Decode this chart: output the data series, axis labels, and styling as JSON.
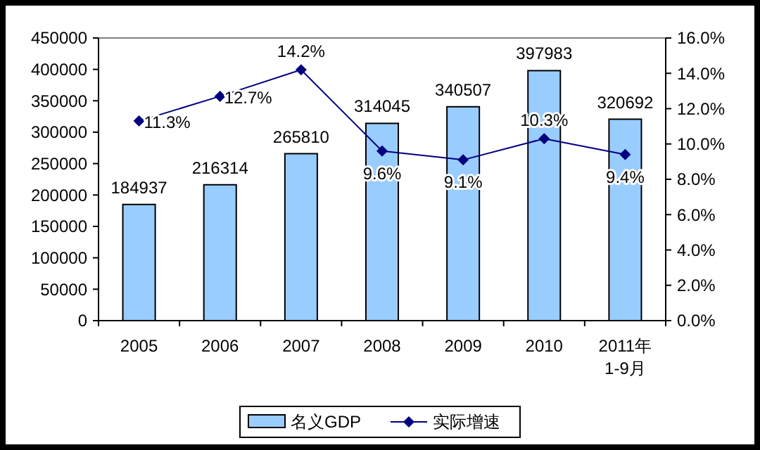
{
  "chart_data": {
    "type": "bar",
    "categories": [
      "2005",
      "2006",
      "2007",
      "2008",
      "2009",
      "2010",
      "2011年\n1-9月"
    ],
    "series": [
      {
        "name": "名义GDP",
        "color": "#99ccff",
        "values": [
          184937,
          216314,
          265810,
          314045,
          340507,
          397983,
          320692
        ],
        "value_labels": [
          "184937",
          "216314",
          "265810",
          "314045",
          "340507",
          "397983",
          "320692"
        ]
      },
      {
        "name": "实际增速",
        "type": "line",
        "axis": "y2",
        "color": "#000080",
        "marker": "diamond",
        "values": [
          11.3,
          12.7,
          14.2,
          9.6,
          9.1,
          10.3,
          9.4
        ],
        "value_labels": [
          "11.3%",
          "12.7%",
          "14.2%",
          "9.6%",
          "9.1%",
          "10.3%",
          "9.4%"
        ]
      }
    ],
    "ylim": [
      0,
      450000
    ],
    "yticks": [
      0,
      50000,
      100000,
      150000,
      200000,
      250000,
      300000,
      350000,
      400000,
      450000
    ],
    "y2lim": [
      0,
      16
    ],
    "y2ticks": [
      {
        "value": 0,
        "label": "0.0%"
      },
      {
        "value": 2,
        "label": "2.0%"
      },
      {
        "value": 4,
        "label": "4.0%"
      },
      {
        "value": 6,
        "label": "6.0%"
      },
      {
        "value": 8,
        "label": "8.0%"
      },
      {
        "value": 10,
        "label": "10.0%"
      },
      {
        "value": 12,
        "label": "12.0%"
      },
      {
        "value": 14,
        "label": "14.0%"
      },
      {
        "value": 16,
        "label": "16.0%"
      }
    ],
    "grid": false,
    "legend": "bottom"
  }
}
